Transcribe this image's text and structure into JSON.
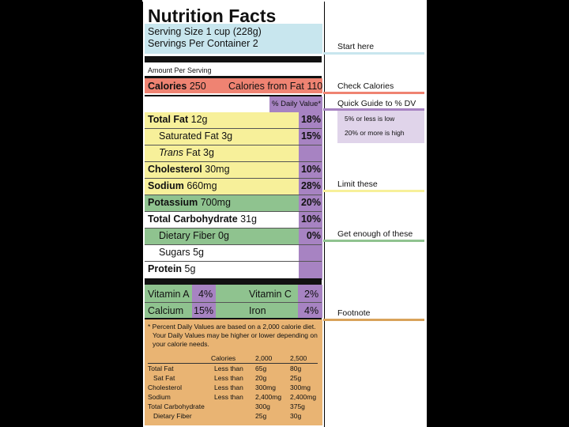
{
  "colors": {
    "blue": "#c8e6ee",
    "red": "#ef8372",
    "yellow": "#f7f09a",
    "green": "#8fc38f",
    "purple": "#a783c2",
    "lavender": "#e0d4ea",
    "tan": "#e9b473",
    "footnote_line": "#d9a35a"
  },
  "label": {
    "title": "Nutrition Facts",
    "serving_size": "Serving Size 1 cup (228g)",
    "servings_per_container": "Servings Per Container 2",
    "amount_per_serving": "Amount Per Serving",
    "calories_label": "Calories",
    "calories_value": "250",
    "calories_fat": "Calories from Fat 110",
    "daily_value_header": "% Daily Value*",
    "nutrients": [
      {
        "name": "Total Fat",
        "amount": "12g",
        "dv": "18%"
      },
      {
        "name": "Saturated Fat",
        "amount": "3g",
        "dv": "15%"
      },
      {
        "name": "Trans",
        "amount": "Fat 3g",
        "dv": ""
      },
      {
        "name": "Cholesterol",
        "amount": "30mg",
        "dv": "10%"
      },
      {
        "name": "Sodium",
        "amount": "660mg",
        "dv": "28%"
      },
      {
        "name": "Potassium",
        "amount": "700mg",
        "dv": "20%"
      },
      {
        "name": "Total Carbohydrate",
        "amount": "31g",
        "dv": "10%"
      },
      {
        "name": "Dietary Fiber",
        "amount": "0g",
        "dv": "0%"
      },
      {
        "name": "Sugars",
        "amount": "5g",
        "dv": ""
      },
      {
        "name": "Protein",
        "amount": "5g",
        "dv": ""
      }
    ],
    "vitamins": [
      {
        "name": "Vitamin A",
        "dv": "4%"
      },
      {
        "name": "Vitamin C",
        "dv": "2%"
      },
      {
        "name": "Calcium",
        "dv": "15%"
      },
      {
        "name": "Iron",
        "dv": "4%"
      }
    ],
    "footnote": [
      "* Percent Daily Values are based on a 2,000 calorie diet.",
      "Your Daily Values may be higher or lower depending on",
      "your calorie needs."
    ],
    "footnote_table": {
      "headers": [
        "Calories",
        "2,000",
        "2,500"
      ],
      "rows": [
        [
          "Total Fat",
          "Less than",
          "65g",
          "80g"
        ],
        [
          "Sat Fat",
          "Less than",
          "20g",
          "25g"
        ],
        [
          "Cholesterol",
          "Less than",
          "300mg",
          "300mg"
        ],
        [
          "Sodium",
          "Less than",
          "2,400mg",
          "2,400mg"
        ],
        [
          "Total Carbohydrate",
          "",
          "300g",
          "375g"
        ],
        [
          "Dietary Fiber",
          "",
          "25g",
          "30g"
        ]
      ]
    }
  },
  "annotations": {
    "start_here": "Start here",
    "check_calories": "Check Calories",
    "quick_guide": "Quick Guide to % DV",
    "low": "5% or less is low",
    "high": "20% or more is high",
    "limit_these": "Limit these",
    "get_enough": "Get enough of these",
    "footnote": "Footnote"
  }
}
